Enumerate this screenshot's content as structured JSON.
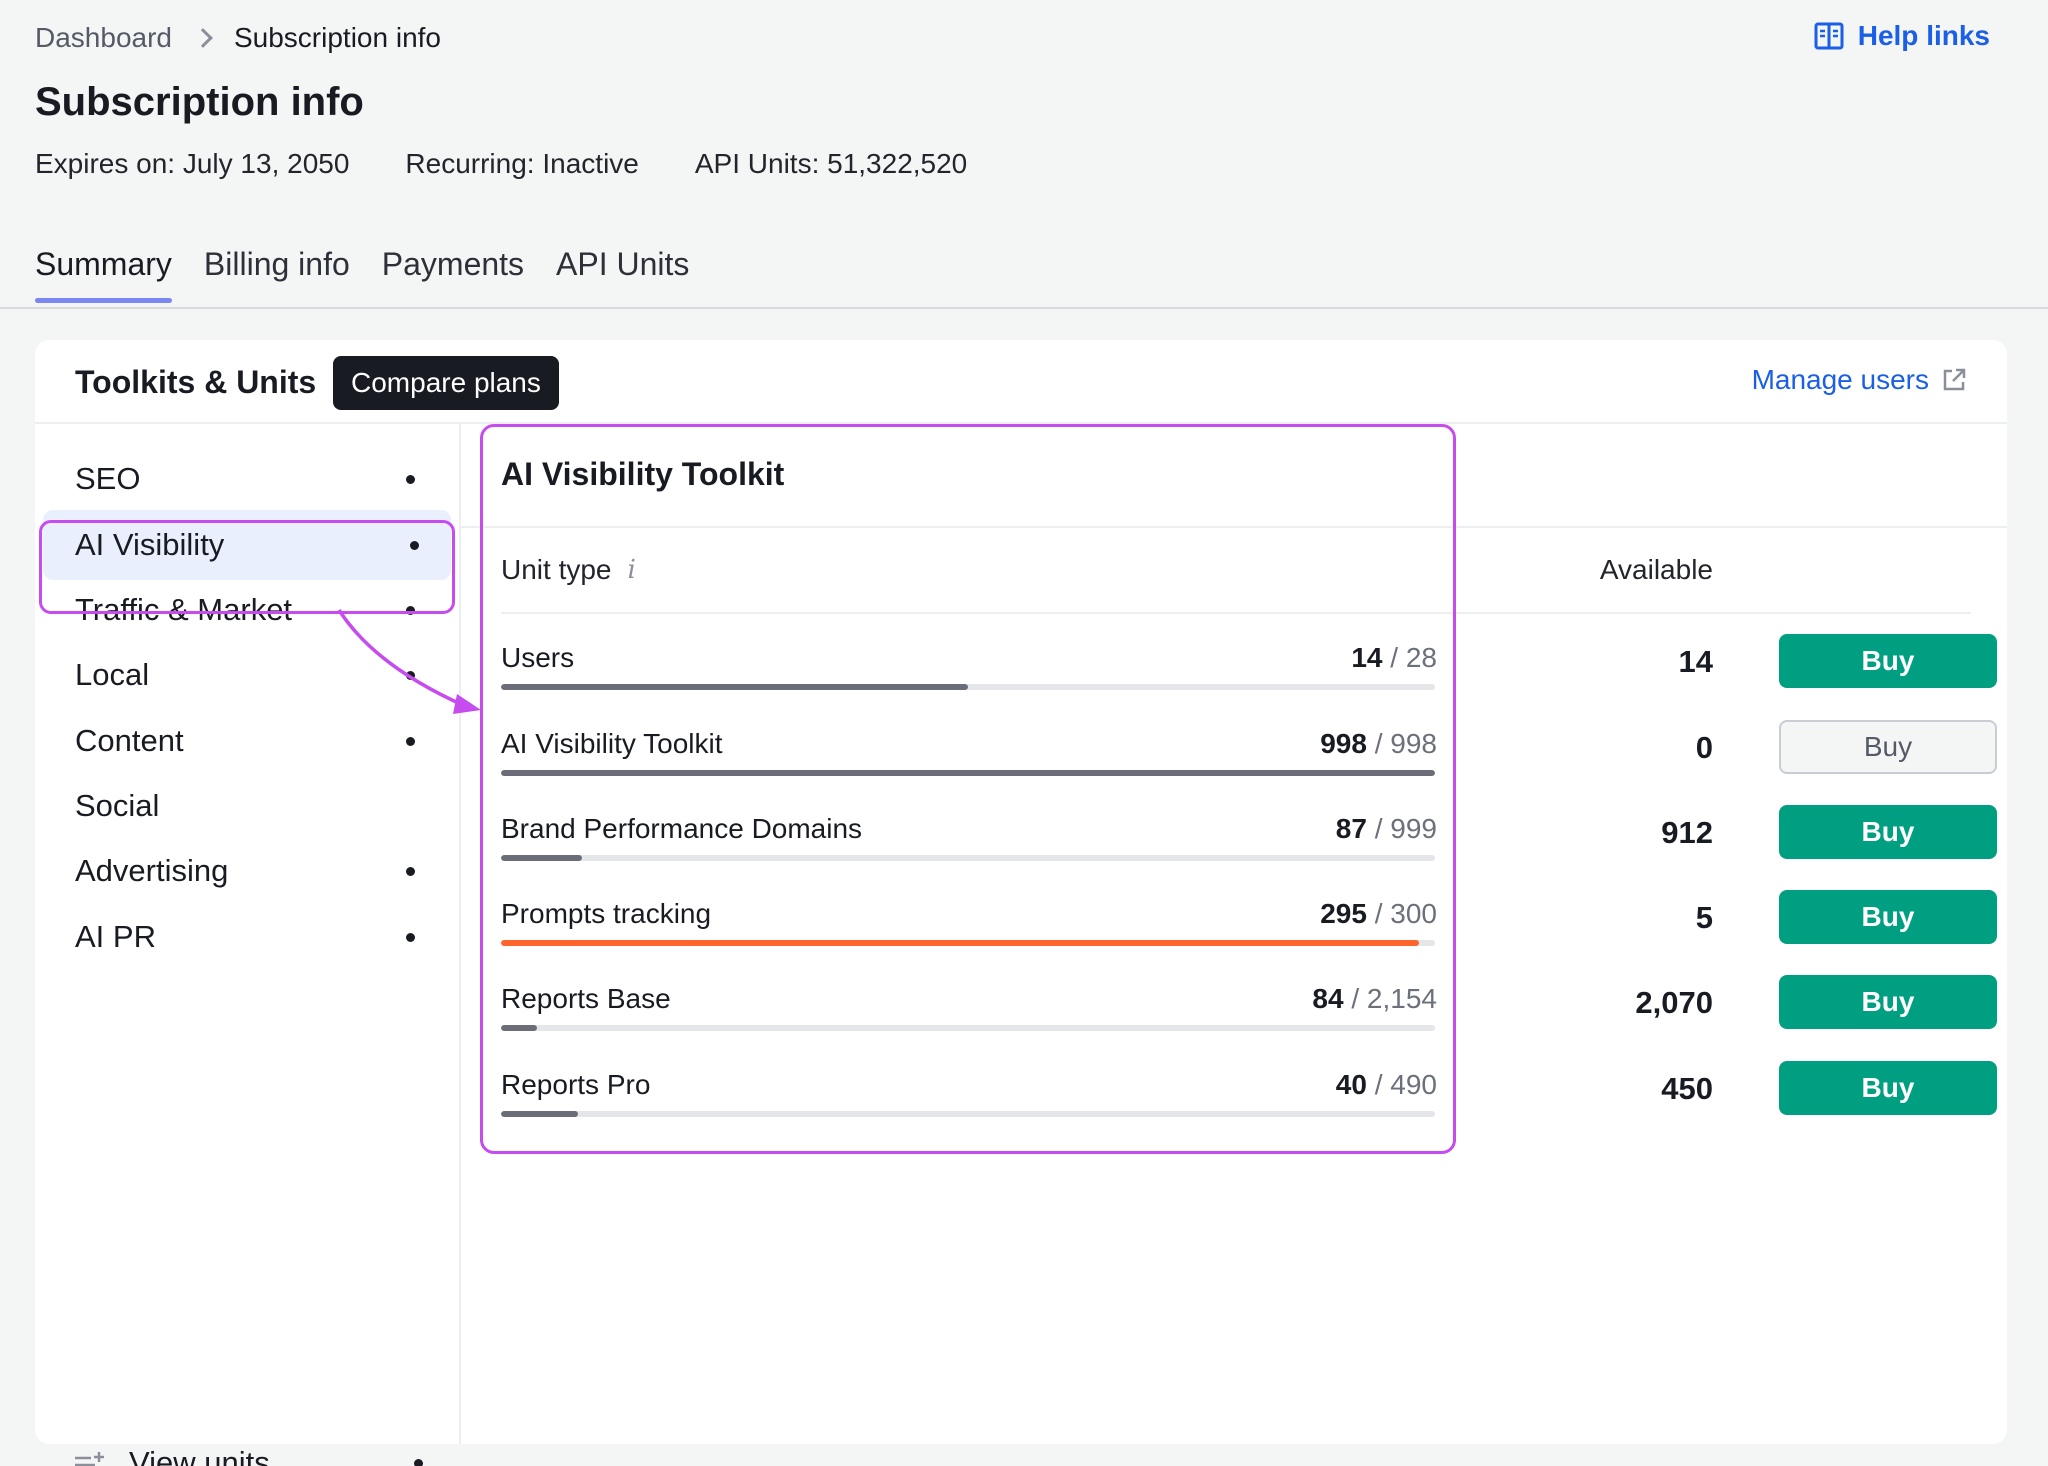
{
  "breadcrumb": {
    "parent": "Dashboard",
    "current": "Subscription info"
  },
  "help_links": "Help links",
  "page_title": "Subscription info",
  "meta": {
    "expires": "Expires on: July 13, 2050",
    "recurring": "Recurring: Inactive",
    "api_units": "API Units: 51,322,520"
  },
  "tabs": [
    "Summary",
    "Billing info",
    "Payments",
    "API Units"
  ],
  "card": {
    "title": "Toolkits & Units",
    "compare_label": "Compare plans",
    "manage_users": "Manage users"
  },
  "sidebar": {
    "items": [
      {
        "label": "SEO",
        "dot": true
      },
      {
        "label": "AI Visibility",
        "dot": true,
        "selected": true
      },
      {
        "label": "Traffic & Market",
        "dot": true
      },
      {
        "label": "Local",
        "dot": true
      },
      {
        "label": "Content",
        "dot": true
      },
      {
        "label": "Social",
        "dot": false
      },
      {
        "label": "Advertising",
        "dot": true
      },
      {
        "label": "AI PR",
        "dot": true
      }
    ],
    "view_units": "View units"
  },
  "panel": {
    "title": "AI Visibility Toolkit",
    "col_unit_type": "Unit type",
    "info_glyph": "i",
    "col_available": "Available",
    "rows": [
      {
        "name": "Users",
        "used": "14",
        "total": "28",
        "fill": 0.5,
        "available": "14",
        "buy": "Buy",
        "buy_enabled": true,
        "warn": false
      },
      {
        "name": "AI Visibility Toolkit",
        "used": "998",
        "total": "998",
        "fill": 1.0,
        "available": "0",
        "buy": "Buy",
        "buy_enabled": false,
        "warn": false
      },
      {
        "name": "Brand Performance Domains",
        "used": "87",
        "total": "999",
        "fill": 0.087,
        "available": "912",
        "buy": "Buy",
        "buy_enabled": true,
        "warn": false
      },
      {
        "name": "Prompts tracking",
        "used": "295",
        "total": "300",
        "fill": 0.983,
        "available": "5",
        "buy": "Buy",
        "buy_enabled": true,
        "warn": true
      },
      {
        "name": "Reports Base",
        "used": "84",
        "total": "2,154",
        "fill": 0.039,
        "available": "2,070",
        "buy": "Buy",
        "buy_enabled": true,
        "warn": false
      },
      {
        "name": "Reports Pro",
        "used": "40",
        "total": "490",
        "fill": 0.082,
        "available": "450",
        "buy": "Buy",
        "buy_enabled": true,
        "warn": false
      }
    ]
  },
  "colors": {
    "link": "#1a5fe6",
    "buy_green": "#009f81",
    "warn_orange": "#ff642d",
    "highlight": "#c64cf0",
    "tab_underline": "#7a87f0"
  }
}
